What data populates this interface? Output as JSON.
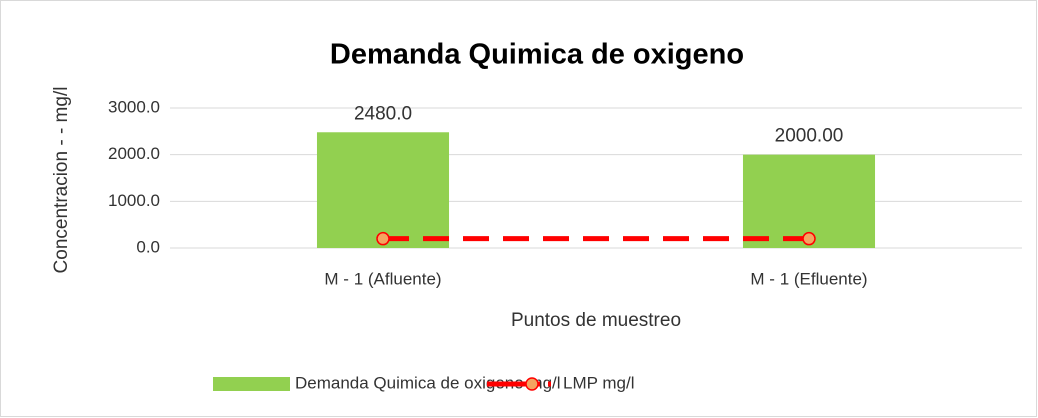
{
  "chart_data": {
    "type": "bar",
    "title": "Demanda Quimica de oxigeno",
    "x_label": "Puntos de muestreo",
    "y_label": "Concentracion - - mg/l",
    "categories": [
      "M - 1 (Afluente)",
      "M - 1 (Efluente)"
    ],
    "series": [
      {
        "name": "Demanda Quimica de oxigeno mg/l",
        "type": "bar",
        "color": "#92d050",
        "values": [
          2480,
          2000
        ],
        "value_labels": [
          "2480.0",
          "2000.00"
        ]
      },
      {
        "name": "LMP mg/l",
        "type": "line",
        "color": "#ff0000",
        "marker_color": "#f4a460",
        "values": [
          200,
          200
        ]
      }
    ],
    "ylim": [
      0,
      3000
    ],
    "yticks": [
      {
        "value": 0,
        "label": "0.0"
      },
      {
        "value": 1000,
        "label": "1000.0"
      },
      {
        "value": 2000,
        "label": "2000.0"
      },
      {
        "value": 3000,
        "label": "3000.0"
      }
    ],
    "grid": true,
    "legend": "bottom"
  }
}
